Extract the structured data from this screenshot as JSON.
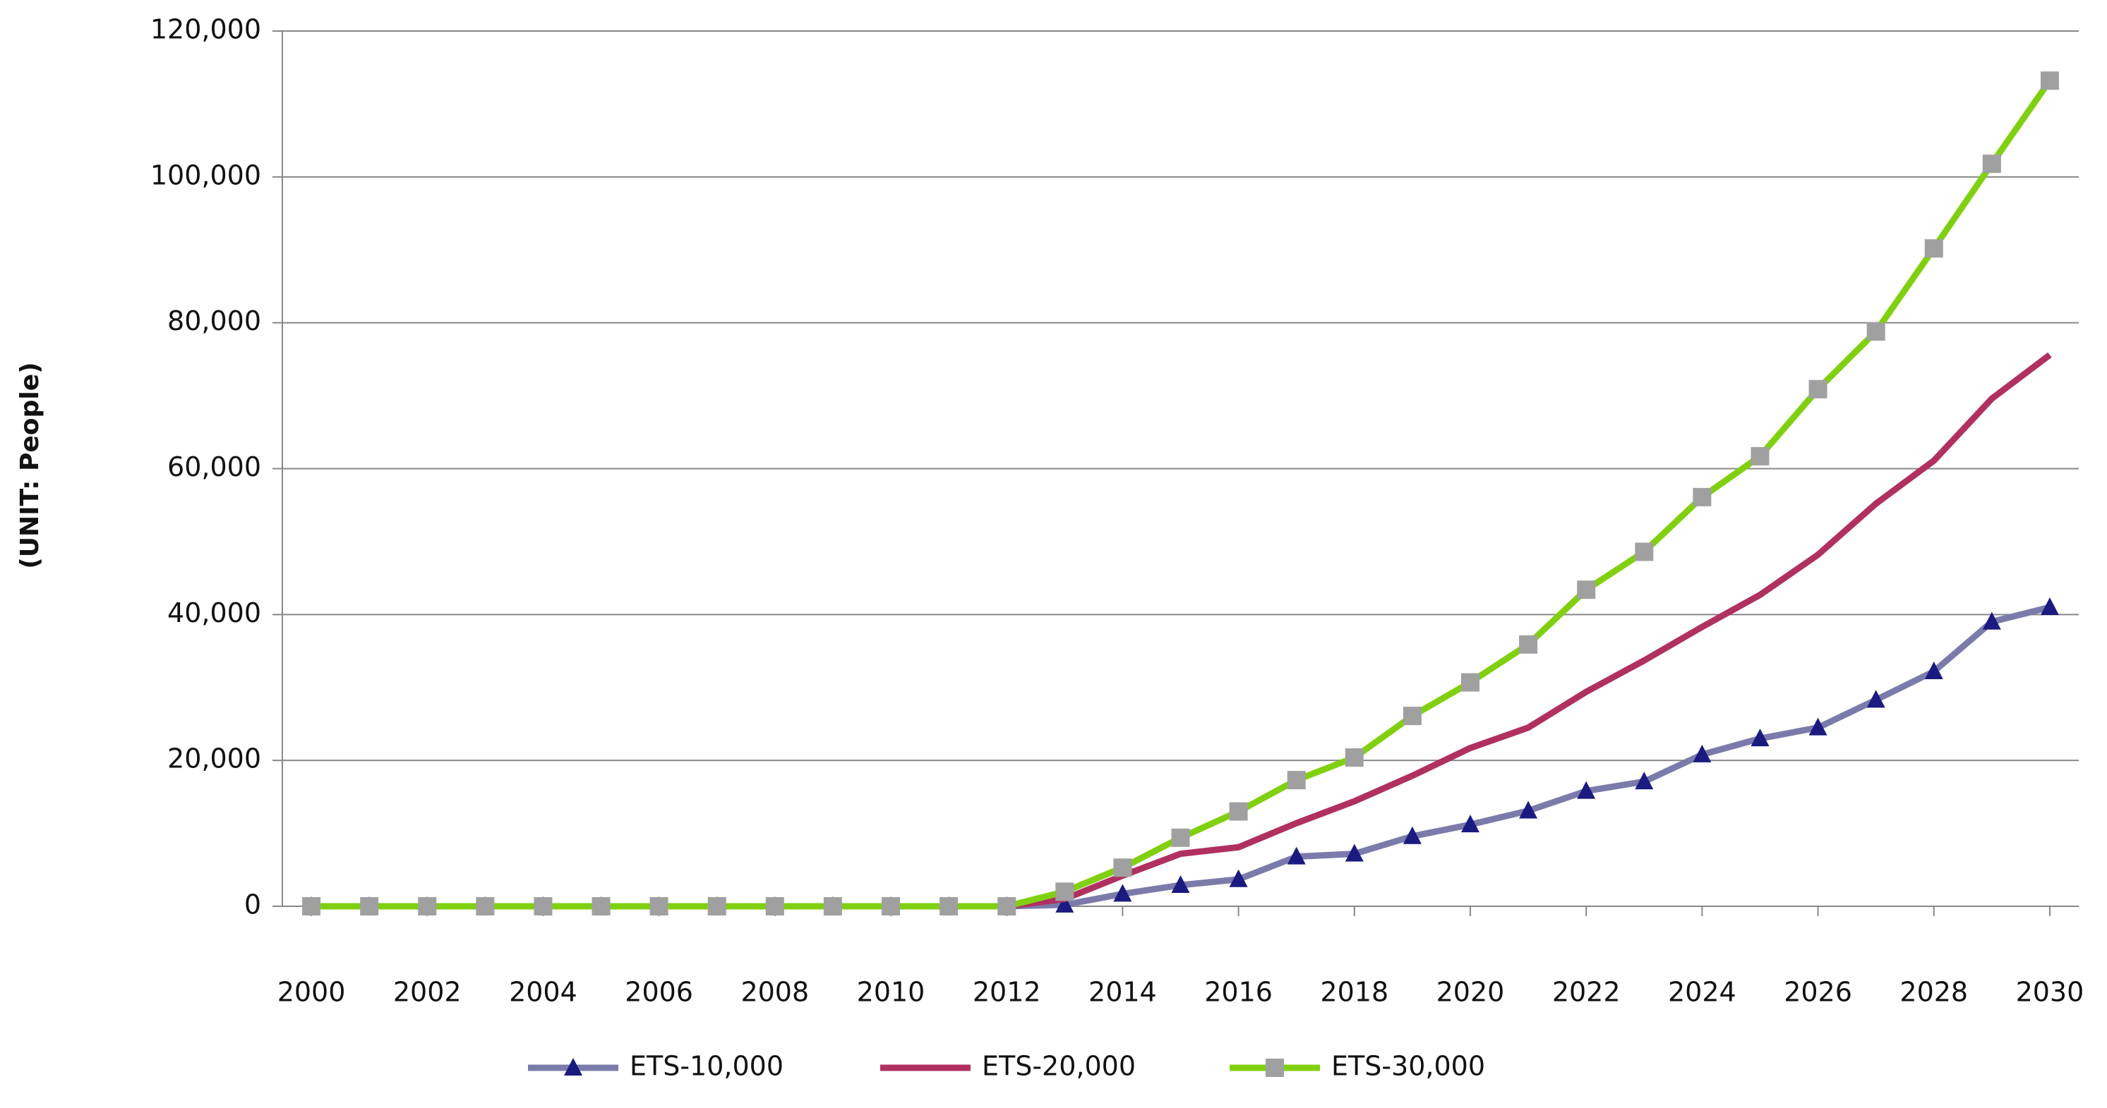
{
  "chart_data": {
    "type": "line",
    "y_label": "(UNIT: People)",
    "x": [
      2000,
      2001,
      2002,
      2003,
      2004,
      2005,
      2006,
      2007,
      2008,
      2009,
      2010,
      2011,
      2012,
      2013,
      2014,
      2015,
      2016,
      2017,
      2018,
      2019,
      2020,
      2021,
      2022,
      2023,
      2024,
      2025,
      2026,
      2027,
      2028,
      2029,
      2030
    ],
    "xlim": [
      1999.5,
      2030.5
    ],
    "xticks": [
      2000,
      2002,
      2004,
      2006,
      2008,
      2010,
      2012,
      2014,
      2016,
      2018,
      2020,
      2022,
      2024,
      2026,
      2028,
      2030
    ],
    "ylim": [
      0,
      120000
    ],
    "yticks": [
      0,
      {
        "value": 20000,
        "label": "20,000"
      },
      {
        "value": 40000,
        "label": "40,000"
      },
      {
        "value": 60000,
        "label": "60,000"
      },
      {
        "value": 80000,
        "label": "80,000"
      },
      {
        "value": 100000,
        "label": "100,000"
      },
      {
        "value": 120000,
        "label": "120,000"
      }
    ],
    "grid": true,
    "legend": "bottom",
    "series": [
      {
        "name": "ETS-10,000",
        "color": "#7b7bab",
        "marker": "triangle",
        "marker_color": "#1a1a80",
        "values": [
          0,
          0,
          0,
          0,
          0,
          0,
          0,
          0,
          0,
          0,
          0,
          0,
          0,
          200,
          1700,
          2900,
          3700,
          6800,
          7200,
          9600,
          11200,
          13100,
          15800,
          17100,
          20800,
          23000,
          24500,
          28300,
          32200,
          39000,
          41000
        ]
      },
      {
        "name": "ETS-20,000",
        "color": "#b03060",
        "values": [
          0,
          0,
          0,
          0,
          0,
          0,
          0,
          0,
          0,
          0,
          0,
          0,
          0,
          1000,
          4200,
          7200,
          8100,
          11400,
          14400,
          17900,
          21700,
          24500,
          29400,
          33700,
          38300,
          42700,
          48200,
          55200,
          61100,
          69600,
          75600
        ]
      },
      {
        "name": "ETS-30,000",
        "color": "#80d010",
        "marker": "square",
        "marker_color": "#a0a0a0",
        "values": [
          0,
          0,
          0,
          0,
          0,
          0,
          0,
          0,
          0,
          0,
          0,
          0,
          0,
          2000,
          5300,
          9400,
          13000,
          17300,
          20400,
          26100,
          30700,
          35900,
          43400,
          48600,
          56100,
          61700,
          70900,
          78800,
          90200,
          101800,
          113200
        ]
      }
    ]
  }
}
